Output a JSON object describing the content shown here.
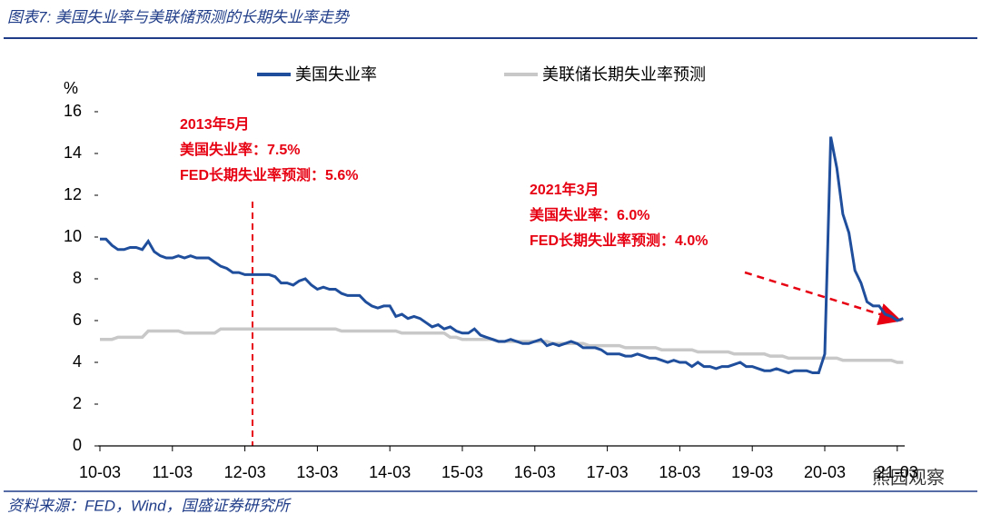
{
  "header": {
    "title": "图表7: 美国失业率与美联储预测的长期失业率走势"
  },
  "footer": {
    "source": "资料来源：FED，Wind，国盛证券研究所",
    "watermark": "熊园观察"
  },
  "chart_data": {
    "type": "line",
    "y_unit": "%",
    "categories": [
      "10-03",
      null,
      null,
      null,
      null,
      null,
      null,
      null,
      null,
      null,
      null,
      null,
      "11-03",
      null,
      null,
      null,
      null,
      null,
      null,
      null,
      null,
      null,
      null,
      null,
      "12-03",
      null,
      null,
      null,
      null,
      null,
      null,
      null,
      null,
      null,
      null,
      null,
      "13-03",
      null,
      null,
      null,
      null,
      null,
      null,
      null,
      null,
      null,
      null,
      null,
      "14-03",
      null,
      null,
      null,
      null,
      null,
      null,
      null,
      null,
      null,
      null,
      null,
      "15-03",
      null,
      null,
      null,
      null,
      null,
      null,
      null,
      null,
      null,
      null,
      null,
      "16-03",
      null,
      null,
      null,
      null,
      null,
      null,
      null,
      null,
      null,
      null,
      null,
      "17-03",
      null,
      null,
      null,
      null,
      null,
      null,
      null,
      null,
      null,
      null,
      null,
      "18-03",
      null,
      null,
      null,
      null,
      null,
      null,
      null,
      null,
      null,
      null,
      null,
      "19-03",
      null,
      null,
      null,
      null,
      null,
      null,
      null,
      null,
      null,
      null,
      null,
      "20-03",
      null,
      null,
      null,
      null,
      null,
      null,
      null,
      null,
      null,
      null,
      null,
      "21-03",
      null
    ],
    "series": [
      {
        "name": "美国失业率",
        "color": "#1f4e9c",
        "values": [
          9.9,
          9.9,
          9.6,
          9.4,
          9.4,
          9.5,
          9.5,
          9.4,
          9.8,
          9.3,
          9.1,
          9.0,
          9.0,
          9.1,
          9.0,
          9.1,
          9.0,
          9.0,
          9.0,
          8.8,
          8.6,
          8.5,
          8.3,
          8.3,
          8.2,
          8.2,
          8.2,
          8.2,
          8.2,
          8.1,
          7.8,
          7.8,
          7.7,
          7.9,
          8.0,
          7.7,
          7.5,
          7.6,
          7.5,
          7.5,
          7.3,
          7.2,
          7.2,
          7.2,
          6.9,
          6.7,
          6.6,
          6.7,
          6.7,
          6.2,
          6.3,
          6.1,
          6.2,
          6.1,
          5.9,
          5.7,
          5.8,
          5.6,
          5.7,
          5.5,
          5.4,
          5.4,
          5.6,
          5.3,
          5.2,
          5.1,
          5.0,
          5.0,
          5.1,
          5.0,
          4.9,
          4.9,
          5.0,
          5.1,
          4.8,
          4.9,
          4.8,
          4.9,
          5.0,
          4.9,
          4.7,
          4.7,
          4.7,
          4.6,
          4.4,
          4.4,
          4.4,
          4.3,
          4.3,
          4.4,
          4.3,
          4.2,
          4.2,
          4.1,
          4.0,
          4.1,
          4.0,
          4.0,
          3.8,
          4.0,
          3.8,
          3.8,
          3.7,
          3.8,
          3.8,
          3.9,
          4.0,
          3.8,
          3.8,
          3.7,
          3.6,
          3.6,
          3.7,
          3.6,
          3.5,
          3.6,
          3.6,
          3.6,
          3.5,
          3.5,
          4.4,
          14.8,
          13.3,
          11.1,
          10.2,
          8.4,
          7.8,
          6.9,
          6.7,
          6.7,
          6.3,
          6.2,
          6.0,
          6.1
        ]
      },
      {
        "name": "美联储长期失业率预测",
        "color": "#c8c8c8",
        "values": [
          5.1,
          5.1,
          5.1,
          5.2,
          5.2,
          5.2,
          5.2,
          5.2,
          5.5,
          5.5,
          5.5,
          5.5,
          5.5,
          5.5,
          5.4,
          5.4,
          5.4,
          5.4,
          5.4,
          5.4,
          5.6,
          5.6,
          5.6,
          5.6,
          5.6,
          5.6,
          5.6,
          5.6,
          5.6,
          5.6,
          5.6,
          5.6,
          5.6,
          5.6,
          5.6,
          5.6,
          5.6,
          5.6,
          5.6,
          5.6,
          5.5,
          5.5,
          5.5,
          5.5,
          5.5,
          5.5,
          5.5,
          5.5,
          5.5,
          5.5,
          5.4,
          5.4,
          5.4,
          5.4,
          5.4,
          5.4,
          5.4,
          5.4,
          5.2,
          5.2,
          5.1,
          5.1,
          5.1,
          5.1,
          5.1,
          5.1,
          5.0,
          5.0,
          5.0,
          5.0,
          5.0,
          5.0,
          5.0,
          5.0,
          5.0,
          4.9,
          4.9,
          4.9,
          4.9,
          4.9,
          4.9,
          4.8,
          4.8,
          4.8,
          4.8,
          4.8,
          4.8,
          4.7,
          4.7,
          4.7,
          4.7,
          4.7,
          4.7,
          4.6,
          4.6,
          4.6,
          4.6,
          4.6,
          4.6,
          4.5,
          4.5,
          4.5,
          4.5,
          4.5,
          4.5,
          4.4,
          4.4,
          4.4,
          4.4,
          4.4,
          4.4,
          4.3,
          4.3,
          4.3,
          4.2,
          4.2,
          4.2,
          4.2,
          4.2,
          4.2,
          4.2,
          4.2,
          4.2,
          4.1,
          4.1,
          4.1,
          4.1,
          4.1,
          4.1,
          4.1,
          4.1,
          4.1,
          4.0,
          4.0
        ]
      }
    ],
    "ylim": [
      0,
      16
    ],
    "yticks": [
      0,
      2,
      4,
      6,
      8,
      10,
      12,
      14,
      16
    ],
    "legend": "top",
    "annotations": [
      {
        "lines": [
          "2013年5月",
          "美国失业率：7.5%",
          "FED长期失业率预测：5.6%"
        ],
        "color": "#e60012"
      },
      {
        "lines": [
          "2021年3月",
          "美国失业率：6.0%",
          "FED长期失业率预测：4.0%"
        ],
        "color": "#e60012"
      }
    ]
  }
}
